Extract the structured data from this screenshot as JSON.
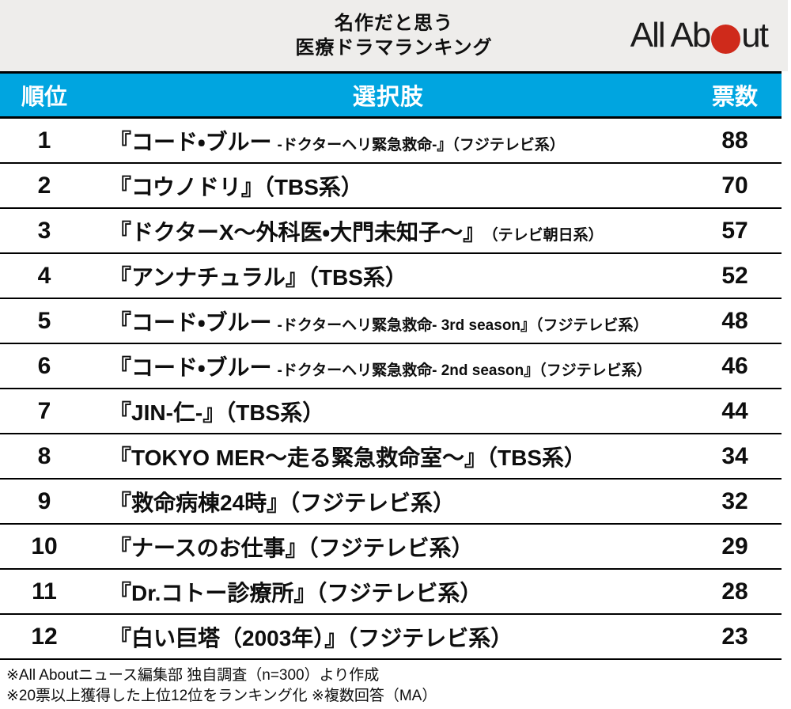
{
  "header": {
    "title_line1": "名作だと思う",
    "title_line2": "医療ドラマランキング",
    "logo": {
      "part1": "All Ab",
      "part2": "ut",
      "dot_color": "#cf2a1b"
    }
  },
  "table": {
    "header_bg": "#00a5e0",
    "columns": {
      "rank": "順位",
      "choice": "選択肢",
      "votes": "票数"
    },
    "rows": [
      {
        "rank": "1",
        "title_main": "『コード・ブルー",
        "title_sub": "-ドクターヘリ緊急救命-』（フジテレビ系）",
        "votes": "88"
      },
      {
        "rank": "2",
        "title_main": "『コウノドリ』（TBS系）",
        "title_sub": "",
        "votes": "70"
      },
      {
        "rank": "3",
        "title_main": "『ドクターX〜外科医・大門未知子〜』",
        "title_sub": "（テレビ朝日系）",
        "votes": "57"
      },
      {
        "rank": "4",
        "title_main": "『アンナチュラル』（TBS系）",
        "title_sub": "",
        "votes": "52"
      },
      {
        "rank": "5",
        "title_main": "『コード・ブルー",
        "title_sub": "-ドクターヘリ緊急救命- 3rd season』（フジテレビ系）",
        "votes": "48"
      },
      {
        "rank": "6",
        "title_main": "『コード・ブルー",
        "title_sub": "-ドクターヘリ緊急救命- 2nd season』（フジテレビ系）",
        "votes": "46"
      },
      {
        "rank": "7",
        "title_main": "『JIN-仁-』（TBS系）",
        "title_sub": "",
        "votes": "44"
      },
      {
        "rank": "8",
        "title_main": "『TOKYO MER〜走る緊急救命室〜』（TBS系）",
        "title_sub": "",
        "votes": "34"
      },
      {
        "rank": "9",
        "title_main": "『救命病棟24時』（フジテレビ系）",
        "title_sub": "",
        "votes": "32"
      },
      {
        "rank": "10",
        "title_main": "『ナースのお仕事』（フジテレビ系）",
        "title_sub": "",
        "votes": "29"
      },
      {
        "rank": "11",
        "title_main": "『Dr.コトー診療所』（フジテレビ系）",
        "title_sub": "",
        "votes": "28"
      },
      {
        "rank": "12",
        "title_main": "『白い巨塔（2003年）』（フジテレビ系）",
        "title_sub": "",
        "votes": "23"
      }
    ]
  },
  "footer": {
    "note1": "※All Aboutニュース編集部 独自調査（n=300）より作成",
    "note2": "※20票以上獲得した上位12位をランキング化 ※複数回答（MA）"
  },
  "chart_data": {
    "type": "table",
    "title": "名作だと思う医療ドラマランキング",
    "columns": [
      "順位",
      "選択肢",
      "票数"
    ],
    "rows": [
      [
        1,
        "『コード・ブルー -ドクターヘリ緊急救命-』（フジテレビ系）",
        88
      ],
      [
        2,
        "『コウノドリ』（TBS系）",
        70
      ],
      [
        3,
        "『ドクターX〜外科医・大門未知子〜』（テレビ朝日系）",
        57
      ],
      [
        4,
        "『アンナチュラル』（TBS系）",
        52
      ],
      [
        5,
        "『コード・ブルー -ドクターヘリ緊急救命- 3rd season』（フジテレビ系）",
        48
      ],
      [
        6,
        "『コード・ブルー -ドクターヘリ緊急救命- 2nd season』（フジテレビ系）",
        46
      ],
      [
        7,
        "『JIN-仁-』（TBS系）",
        44
      ],
      [
        8,
        "『TOKYO MER〜走る緊急救命室〜』（TBS系）",
        34
      ],
      [
        9,
        "『救命病棟24時』（フジテレビ系）",
        32
      ],
      [
        10,
        "『ナースのお仕事』（フジテレビ系）",
        29
      ],
      [
        11,
        "『Dr.コトー診療所』（フジテレビ系）",
        28
      ],
      [
        12,
        "『白い巨塔（2003年）』（フジテレビ系）",
        23
      ]
    ],
    "source_notes": [
      "※All Aboutニュース編集部 独自調査（n=300）より作成",
      "※20票以上獲得した上位12位をランキング化 ※複数回答（MA）"
    ]
  }
}
